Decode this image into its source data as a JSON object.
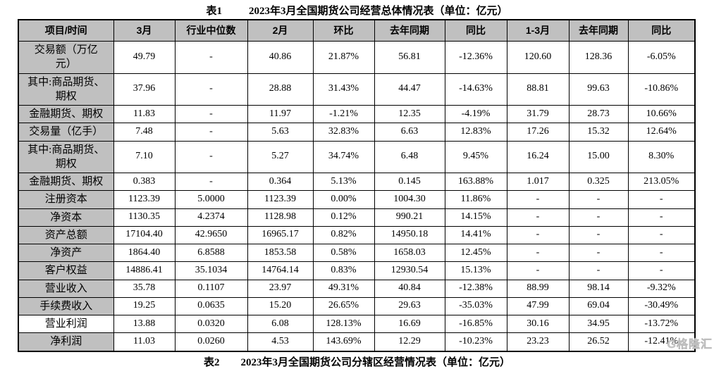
{
  "table": {
    "caption": "表1",
    "title": "2023年3月全国期货公司经营总体情况表（单位：亿元）",
    "headers": [
      "项目/时间",
      "3月",
      "行业中位数",
      "2月",
      "环比",
      "去年同期",
      "同比",
      "1-3月",
      "去年同期",
      "同比"
    ],
    "rows": [
      {
        "label": "交易额（万亿\n元）",
        "values": [
          "49.79",
          "-",
          "40.86",
          "21.87%",
          "56.81",
          "-12.36%",
          "120.60",
          "128.36",
          "-6.05%"
        ]
      },
      {
        "label": "其中:商品期货、\n期权",
        "values": [
          "37.96",
          "-",
          "28.88",
          "31.43%",
          "44.47",
          "-14.63%",
          "88.81",
          "99.63",
          "-10.86%"
        ]
      },
      {
        "label": "金融期货、期权",
        "values": [
          "11.83",
          "-",
          "11.97",
          "-1.21%",
          "12.35",
          "-4.19%",
          "31.79",
          "28.73",
          "10.66%"
        ]
      },
      {
        "label": "交易量（亿手）",
        "values": [
          "7.48",
          "-",
          "5.63",
          "32.83%",
          "6.63",
          "12.83%",
          "17.26",
          "15.32",
          "12.64%"
        ]
      },
      {
        "label": "其中:商品期货、\n期权",
        "values": [
          "7.10",
          "-",
          "5.27",
          "34.74%",
          "6.48",
          "9.45%",
          "16.24",
          "15.00",
          "8.30%"
        ]
      },
      {
        "label": "金融期货、期权",
        "values": [
          "0.383",
          "-",
          "0.364",
          "5.13%",
          "0.145",
          "163.88%",
          "1.017",
          "0.325",
          "213.05%"
        ]
      },
      {
        "label": "注册资本",
        "values": [
          "1123.39",
          "5.0000",
          "1123.39",
          "0.00%",
          "1004.30",
          "11.86%",
          "-",
          "-",
          "-"
        ]
      },
      {
        "label": "净资本",
        "values": [
          "1130.35",
          "4.2374",
          "1128.98",
          "0.12%",
          "990.21",
          "14.15%",
          "-",
          "-",
          "-"
        ]
      },
      {
        "label": "资产总额",
        "values": [
          "17104.40",
          "42.9650",
          "16965.17",
          "0.82%",
          "14950.18",
          "14.41%",
          "-",
          "-",
          "-"
        ]
      },
      {
        "label": "净资产",
        "values": [
          "1864.40",
          "6.8588",
          "1853.58",
          "0.58%",
          "1658.03",
          "12.45%",
          "-",
          "-",
          "-"
        ]
      },
      {
        "label": "客户权益",
        "values": [
          "14886.41",
          "35.1034",
          "14764.14",
          "0.83%",
          "12930.54",
          "15.13%",
          "-",
          "-",
          "-"
        ]
      },
      {
        "label": "营业收入",
        "values": [
          "35.78",
          "0.1107",
          "23.97",
          "49.31%",
          "40.84",
          "-12.38%",
          "88.99",
          "98.14",
          "-9.32%"
        ]
      },
      {
        "label": "手续费收入",
        "values": [
          "19.25",
          "0.0635",
          "15.20",
          "26.65%",
          "29.63",
          "-35.03%",
          "47.99",
          "69.04",
          "-30.49%"
        ]
      },
      {
        "label": "营业利润",
        "highlighted": true,
        "values": [
          "13.88",
          "0.0320",
          "6.08",
          "128.13%",
          "16.69",
          "-16.85%",
          "30.16",
          "34.95",
          "-13.72%"
        ]
      },
      {
        "label": "净利润",
        "values": [
          "11.03",
          "0.0260",
          "4.53",
          "143.69%",
          "12.29",
          "-10.23%",
          "23.23",
          "26.52",
          "-12.41%"
        ]
      }
    ]
  },
  "footer": {
    "partial_caption": "表2　　2023年3月全国期货公司分辖区经营情况表（单位：亿元）",
    "watermark": "G格隆汇"
  }
}
